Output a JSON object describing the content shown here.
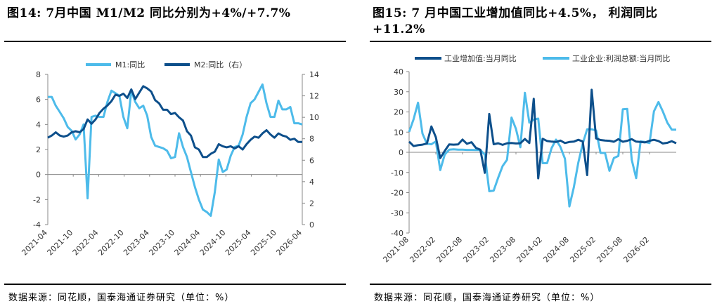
{
  "left": {
    "title": "图14:  7月中国 M1/M2 同比分别为+4%/+7.7%",
    "source": "数据来源：同花顺，国泰海通证券研究（单位：%）",
    "chart_data": {
      "type": "line",
      "legend_placement": "top-center",
      "grid": false,
      "x_tick_labels": [
        "2021-04",
        "2021-10",
        "2022-04",
        "2022-10",
        "2023-04",
        "2023-10",
        "2024-04",
        "2024-10",
        "2025-04",
        "2025-10",
        "2026-04"
      ],
      "x_range": [
        0,
        64
      ],
      "y_left": {
        "ticks": [
          -4,
          -2,
          0,
          2,
          4,
          6,
          8
        ],
        "range": [
          -4,
          8
        ]
      },
      "y_right": {
        "ticks": [
          0,
          2,
          4,
          6,
          8,
          10,
          12,
          14
        ],
        "range": [
          0,
          14
        ]
      },
      "series": [
        {
          "name": "M1:同比",
          "axis": "left",
          "color": "#4dbbea",
          "values": [
            6.2,
            6.2,
            5.5,
            5,
            4.5,
            3.8,
            3.5,
            2.8,
            3.2,
            4,
            -1.9,
            4.6,
            4.7,
            4.6,
            4.6,
            5.8,
            6.7,
            6.5,
            6.3,
            4.6,
            3.7,
            6.7,
            5.8,
            5.3,
            5.5,
            4.7,
            3,
            2.3,
            2.2,
            2.1,
            1.9,
            1.3,
            1.4,
            3.3,
            2.2,
            1.4,
            0.2,
            -1,
            -2,
            -2.8,
            -3,
            -3.3,
            -1.4,
            1.2,
            0.2,
            0.4,
            1.5,
            2.2,
            2.3,
            3.2,
            4.6,
            5.7,
            6,
            6.6,
            7.2,
            5.7,
            4.6,
            4.6,
            5.9,
            5.2,
            5.2,
            5.4,
            4.1,
            4.1,
            4
          ]
        },
        {
          "name": "M2:同比（右）",
          "axis": "right",
          "color": "#0d4f8b",
          "values": [
            8.1,
            8.3,
            8.6,
            8.3,
            8.2,
            8.3,
            8.6,
            8.7,
            8.6,
            8.9,
            9.8,
            9.4,
            9.8,
            10.4,
            10.8,
            11.1,
            11.5,
            12.1,
            12,
            12.2,
            11.8,
            12.6,
            11.7,
            12.3,
            12.9,
            12.7,
            12.4,
            11.6,
            11.3,
            10.7,
            10.7,
            10.3,
            10.4,
            10,
            9.7,
            8.7,
            8.3,
            7.2,
            7,
            6.3,
            6.3,
            6.6,
            6.8,
            7.5,
            7.3,
            7.2,
            7.3,
            7.1,
            7.3,
            7,
            7.5,
            7.9,
            8.2,
            8.1,
            8.5,
            8.8,
            8.4,
            8.1,
            8.5,
            8.3,
            8.2,
            7.9,
            8,
            7.7,
            7.7
          ]
        }
      ]
    }
  },
  "right": {
    "title_line1": "图15:  7 月中国工业增加值同比+4.5%，  利润同比",
    "title_line2": "+11.2%",
    "source": "数据来源：同花顺，国泰海通证券研究（单位：%）",
    "chart_data": {
      "type": "line",
      "legend_placement": "top-center",
      "grid": false,
      "x_tick_labels": [
        "2021-08",
        "2022-02",
        "2022-08",
        "2023-02",
        "2023-08",
        "2024-02",
        "2024-08",
        "2025-02",
        "2025-08",
        "2026-02"
      ],
      "x_range": [
        0,
        60
      ],
      "y": {
        "ticks": [
          -40,
          -30,
          -20,
          -10,
          0,
          10,
          20,
          30,
          40
        ],
        "range": [
          -40,
          40
        ]
      },
      "series": [
        {
          "name": "工业增加值:当月同比",
          "color": "#0d4f8b",
          "values": [
            5.3,
            3.1,
            3.5,
            3.8,
            4.3,
            12.8,
            7.5,
            -2.9,
            0.7,
            3.9,
            3.8,
            3.9,
            6.3,
            4.2,
            5,
            2.2,
            1.3,
            -10.2,
            19,
            4,
            4.5,
            3.7,
            4.5,
            4.6,
            4.4,
            4.5,
            6.6,
            4.6,
            26.5,
            -12.9,
            6.7,
            5.6,
            5.3,
            5.1,
            5.8,
            4.6,
            5.1,
            5.3,
            6.2,
            5.4,
            -11.3,
            31,
            6.9,
            6.1,
            5.8,
            5.7,
            5.2,
            6.5,
            5.2,
            5.7,
            6.5,
            5.3,
            5.1,
            4.9,
            5.7,
            6.2,
            5.6,
            4.4,
            4.7,
            5.5,
            4.5
          ]
        },
        {
          "name": "工业企业:利润总额:当月同比",
          "color": "#4dbbea",
          "values": [
            10.1,
            16.3,
            24.6,
            9.3,
            4.2,
            4,
            5.4,
            -8.8,
            -1.1,
            1.3,
            1.5,
            1.3,
            1.3,
            1.2,
            1.2,
            1.1,
            1.2,
            -1.2,
            -19.3,
            -19,
            -12.6,
            -6.8,
            -3.7,
            17.2,
            11.6,
            2.5,
            29.5,
            14.7,
            16.2,
            16.7,
            -5.4,
            -5.4,
            2.1,
            6.3,
            2.6,
            -3.2,
            -26.8,
            -17.4,
            -5.1,
            4.3,
            11.4,
            11.4,
            10.8,
            -0.3,
            -0.3,
            -9.2,
            -2.8,
            -1.8,
            21.3,
            21.5,
            -3.7,
            -12.8,
            5.4,
            5.1,
            4.6,
            20.3,
            24.9,
            20.2,
            14.7,
            11.2,
            11.2
          ]
        }
      ]
    }
  }
}
